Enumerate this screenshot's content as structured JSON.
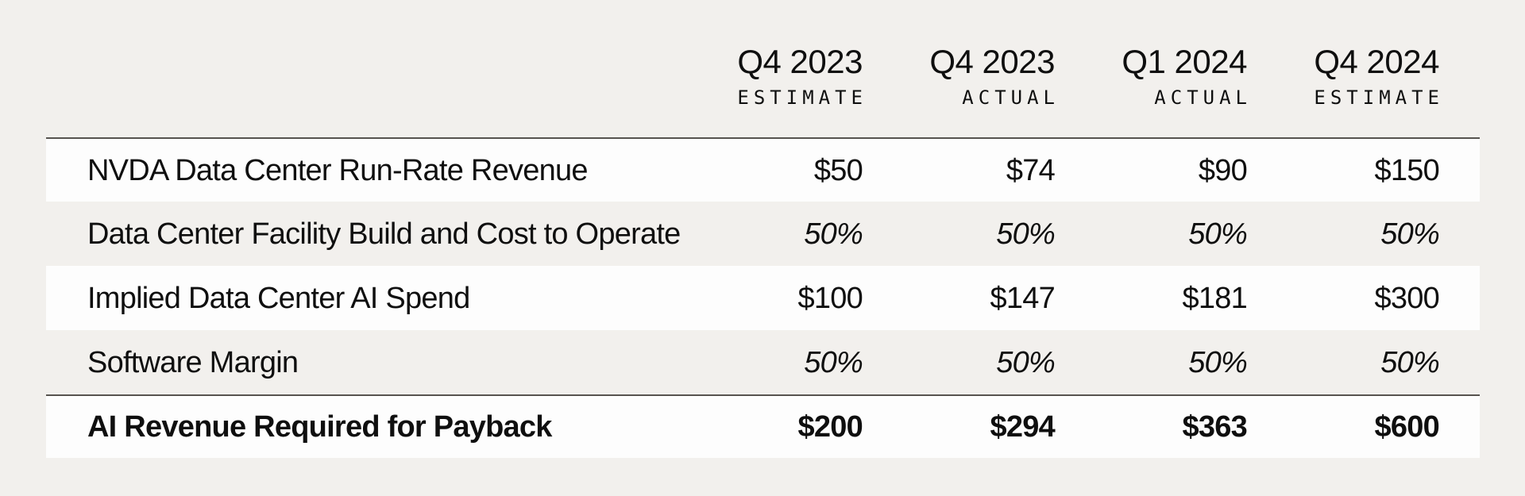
{
  "colors": {
    "page_background": "#f2f0ed",
    "highlight_row_background": "#fdfdfd",
    "rule_line": "#57534f",
    "text": "#0f0f0f"
  },
  "table": {
    "columns": [
      {
        "period": "Q4 2023",
        "qualifier": "ESTIMATE"
      },
      {
        "period": "Q4 2023",
        "qualifier": "ACTUAL"
      },
      {
        "period": "Q1 2024",
        "qualifier": "ACTUAL"
      },
      {
        "period": "Q4 2024",
        "qualifier": "ESTIMATE"
      }
    ],
    "rows": [
      {
        "label": "NVDA Data Center Run-Rate Revenue",
        "values": [
          "$50",
          "$74",
          "$90",
          "$150"
        ],
        "emphasis": "none"
      },
      {
        "label": "Data Center Facility Build and Cost to Operate",
        "values": [
          "50%",
          "50%",
          "50%",
          "50%"
        ],
        "emphasis": "italic"
      },
      {
        "label": "Implied Data Center AI Spend",
        "values": [
          "$100",
          "$147",
          "$181",
          "$300"
        ],
        "emphasis": "none"
      },
      {
        "label": "Software Margin",
        "values": [
          "50%",
          "50%",
          "50%",
          "50%"
        ],
        "emphasis": "italic"
      },
      {
        "label": "AI Revenue Required for Payback",
        "values": [
          "$200",
          "$294",
          "$363",
          "$600"
        ],
        "emphasis": "bold-total"
      }
    ]
  },
  "chart_data": {
    "type": "table",
    "columns": [
      "Q4 2023 ESTIMATE",
      "Q4 2023 ACTUAL",
      "Q1 2024 ACTUAL",
      "Q4 2024 ESTIMATE"
    ],
    "rows": [
      {
        "label": "NVDA Data Center Run-Rate Revenue",
        "values": [
          "$50",
          "$74",
          "$90",
          "$150"
        ]
      },
      {
        "label": "Data Center Facility Build and Cost to Operate",
        "values": [
          "50%",
          "50%",
          "50%",
          "50%"
        ]
      },
      {
        "label": "Implied Data Center AI Spend",
        "values": [
          "$100",
          "$147",
          "$181",
          "$300"
        ]
      },
      {
        "label": "Software Margin",
        "values": [
          "50%",
          "50%",
          "50%",
          "50%"
        ]
      },
      {
        "label": "AI Revenue Required for Payback",
        "values": [
          "$200",
          "$294",
          "$363",
          "$600"
        ]
      }
    ]
  }
}
